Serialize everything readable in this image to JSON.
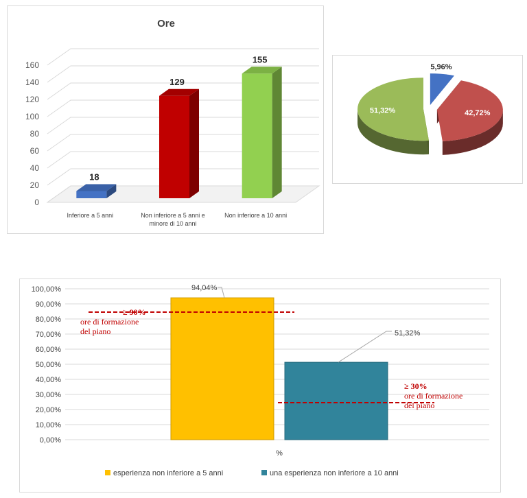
{
  "chart_data": [
    {
      "type": "bar",
      "title": "Ore",
      "categories": [
        "Inferiore a 5 anni",
        "Non inferiore a 5 anni e minore di 10 anni",
        "Non inferiore a 10 anni"
      ],
      "category_lines": [
        [
          "Inferiore a 5 anni"
        ],
        [
          "Non inferiore a 5 anni e",
          "minore di 10 anni"
        ],
        [
          "Non inferiore a 10 anni"
        ]
      ],
      "values": [
        18,
        129,
        155
      ],
      "data_labels": [
        "18",
        "129",
        "155"
      ],
      "colors": [
        "#4472c4",
        "#c00000",
        "#92d050"
      ],
      "ylim": [
        0,
        160
      ],
      "yticks": [
        "0",
        "20",
        "40",
        "60",
        "80",
        "100",
        "120",
        "140",
        "160"
      ],
      "grid": true,
      "legend": "none"
    },
    {
      "type": "pie",
      "values": [
        5.96,
        42.72,
        51.32
      ],
      "labels": [
        "5,96%",
        "42,72%",
        "51,32%"
      ],
      "colors": [
        "#4472c4",
        "#c0504d",
        "#9bbb59"
      ],
      "legend": "none"
    },
    {
      "type": "bar",
      "categories": [
        "%"
      ],
      "series": [
        {
          "name": "esperienza non inferiore a 5 anni",
          "values": [
            94.04
          ],
          "color": "#ffc000"
        },
        {
          "name": "una esperienza non inferiore a 10 anni",
          "values": [
            51.32
          ],
          "color": "#31849b"
        }
      ],
      "data_labels": [
        "94,04%",
        "51,32%"
      ],
      "ylim": [
        0,
        100
      ],
      "yticks": [
        "0,00%",
        "10,00%",
        "20,00%",
        "30,00%",
        "40,00%",
        "50,00%",
        "60,00%",
        "70,00%",
        "80,00%",
        "90,00%",
        "100,00%"
      ],
      "grid": true,
      "legend": "bottom",
      "annotations": [
        {
          "value": 90,
          "line1": "≥ 90%",
          "line2": "ore di formazione",
          "line3": "del piano",
          "color": "#c00000"
        },
        {
          "value": 30,
          "line1": "≥ 30%",
          "line2": "ore di formazione",
          "line3": "del piano",
          "color": "#c00000"
        }
      ]
    }
  ]
}
